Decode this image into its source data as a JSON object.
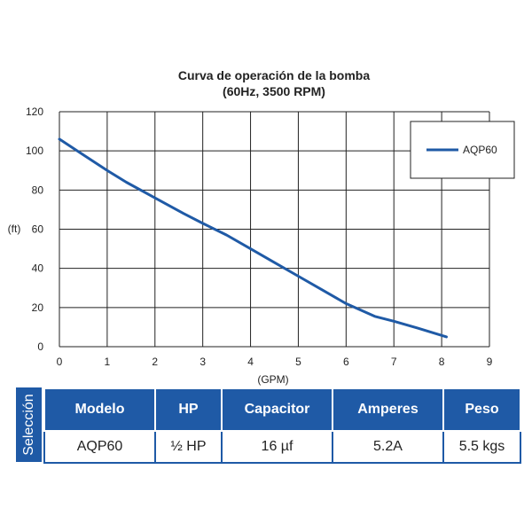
{
  "chart_data": {
    "type": "line",
    "title": [
      "Curva de operación de la bomba",
      "(60Hz, 3500 RPM)"
    ],
    "xlabel": "(GPM)",
    "ylabel": "(ft)",
    "xlim": [
      0,
      9
    ],
    "ylim": [
      0,
      120
    ],
    "xticks": [
      0,
      1,
      2,
      3,
      4,
      5,
      6,
      7,
      8,
      9
    ],
    "yticks": [
      0,
      20,
      40,
      60,
      80,
      100,
      120
    ],
    "grid": true,
    "legend_position": "top-right",
    "series": [
      {
        "name": "AQP60",
        "color": "#1f5aa6",
        "x": [
          0,
          0.5,
          1.0,
          1.4,
          2.0,
          2.6,
          3.0,
          3.5,
          4.0,
          4.5,
          5.0,
          5.5,
          6.0,
          6.6,
          7.0,
          7.5,
          8.1
        ],
        "y": [
          106,
          98,
          90,
          84,
          76,
          68,
          63,
          57,
          50,
          43,
          36,
          29,
          22,
          15.5,
          13,
          9.5,
          5
        ]
      }
    ]
  },
  "spec_table": {
    "side_label": "Selección",
    "headers": [
      "Modelo",
      "HP",
      "Capacitor",
      "Amperes",
      "Peso"
    ],
    "row": [
      "AQP60",
      "½ HP",
      "16 µf",
      "5.2A",
      "5.5 kgs"
    ]
  }
}
